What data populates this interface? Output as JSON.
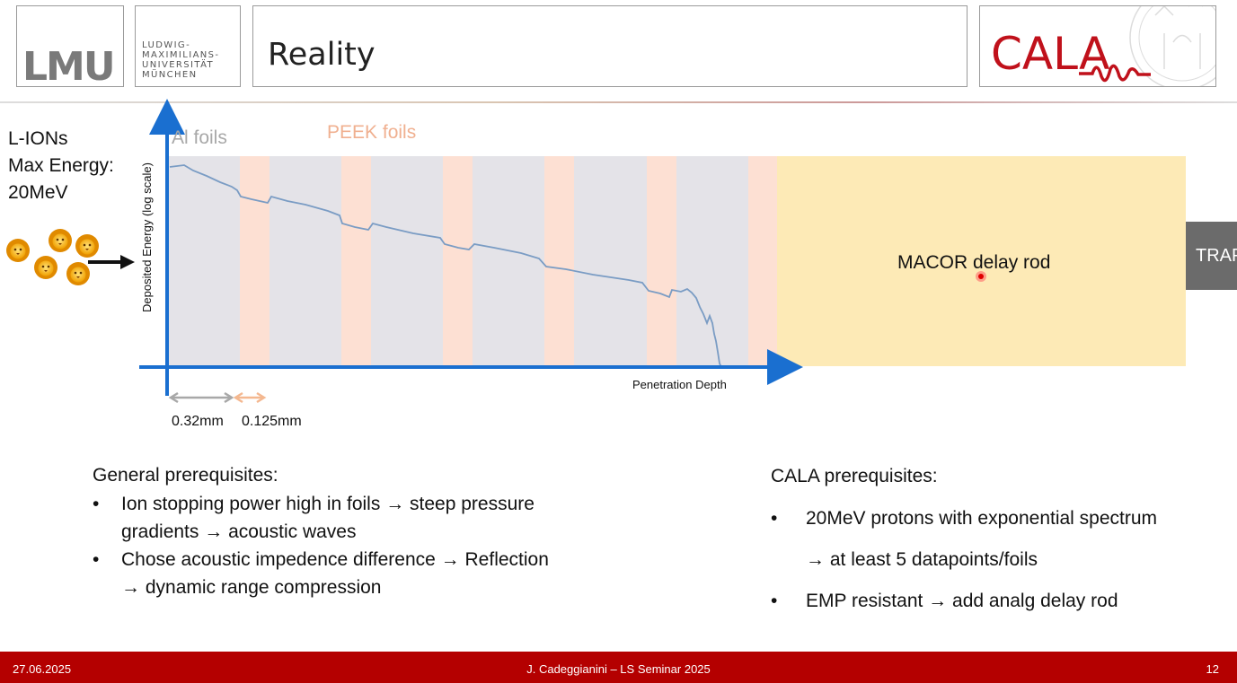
{
  "header": {
    "lmu_logo": "LMU",
    "lmu_name_lines": [
      "LUDWIG-",
      "MAXIMILIANS-",
      "UNIVERSITÄT",
      "MÜNCHEN"
    ],
    "title": "Reality",
    "cala_logo": "CALA"
  },
  "left_info": {
    "line1": "L-IONs",
    "line2": "Max Energy:",
    "line3": "20MeV"
  },
  "diagram": {
    "al_label": "Al foils",
    "peek_label": "PEEK foils",
    "y_axis_label": "Deposited Energy (log scale)",
    "x_axis_label": "Penetration Depth",
    "al_thickness": "0.32mm",
    "peek_thickness": "0.125mm",
    "rod_label": "MACOR delay rod",
    "trap_label": "TRAP",
    "colors": {
      "axis": "#1a6fd0",
      "al_band": "#e4e3e8",
      "peek_band": "#fde0d3",
      "rod": "#fdeab6",
      "curve": "#7a9cc4"
    }
  },
  "general_prereq": {
    "heading": "General prerequisites:",
    "items": [
      {
        "a": "Ion stopping power high in foils",
        "b": "steep pressure",
        "c": "gradients",
        "d": "acoustic waves"
      },
      {
        "a": "Chose acoustic impedence difference",
        "b": "Reflection",
        "c": "dynamic range compression"
      }
    ]
  },
  "cala_prereq": {
    "heading": "CALA prerequisites:",
    "item1": "20MeV protons with exponential spectrum",
    "item1_sub": "at least 5 datapoints/foils",
    "item2_a": "EMP resistant",
    "item2_b": "add analg delay rod"
  },
  "arrow_glyph": "→",
  "footer": {
    "date": "27.06.2025",
    "center": "J. Cadeggianini – LS Seminar 2025",
    "page": "12"
  }
}
